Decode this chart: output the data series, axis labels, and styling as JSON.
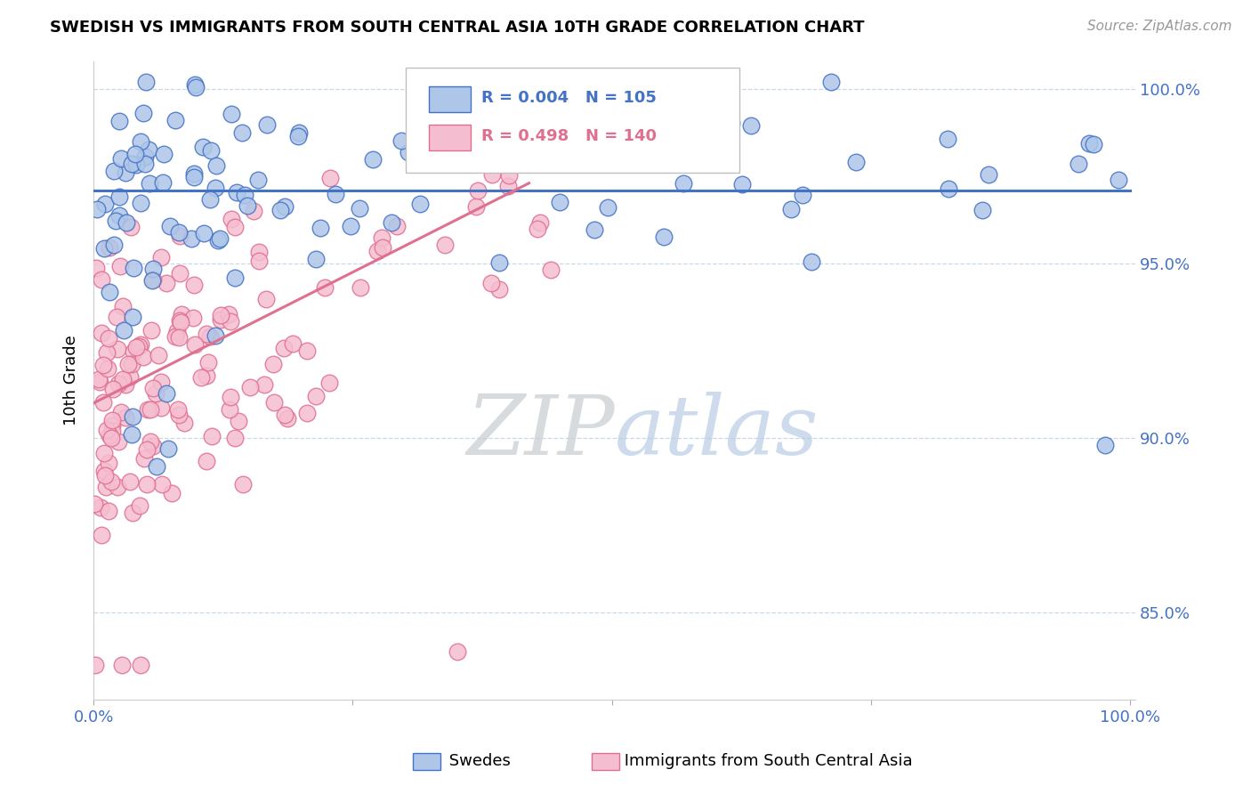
{
  "title": "SWEDISH VS IMMIGRANTS FROM SOUTH CENTRAL ASIA 10TH GRADE CORRELATION CHART",
  "source": "Source: ZipAtlas.com",
  "ylabel": "10th Grade",
  "blue_R": 0.004,
  "blue_N": 105,
  "pink_R": 0.498,
  "pink_N": 140,
  "blue_color": "#aec6e8",
  "blue_edge_color": "#4472c4",
  "pink_color": "#f5bdd0",
  "pink_edge_color": "#e07090",
  "blue_line_color": "#4472c4",
  "pink_line_color": "#e07090",
  "legend_color": "#4472c4",
  "grid_color": "#c8d8e8",
  "watermark_color": "#d8e4f0",
  "background_color": "#ffffff",
  "ylim_low": 0.825,
  "ylim_high": 1.008,
  "xlim_low": 0.0,
  "xlim_high": 1.005,
  "y_ticks": [
    0.85,
    0.9,
    0.95,
    1.0
  ],
  "y_tick_labels": [
    "85.0%",
    "90.0%",
    "95.0%",
    "100.0%"
  ],
  "blue_line_y": 0.971,
  "pink_line_x0": 0.0,
  "pink_line_y0": 0.91,
  "pink_line_x1": 0.42,
  "pink_line_y1": 0.973,
  "scatter_size": 180
}
